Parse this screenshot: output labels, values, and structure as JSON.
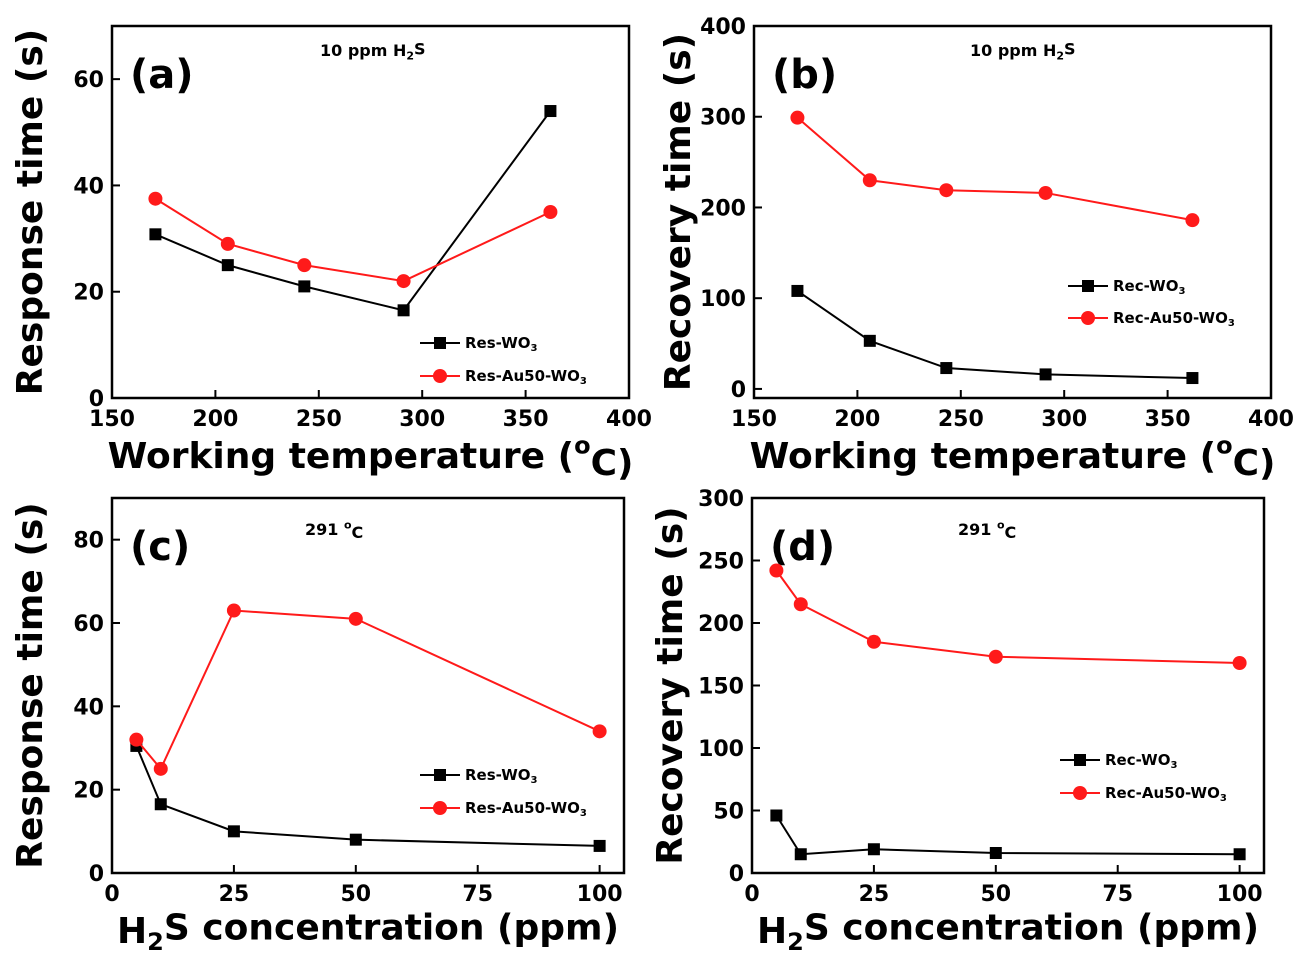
{
  "colors": {
    "wo3": "#000000",
    "au": "#ff1a1a"
  },
  "chart_data": [
    {
      "panel_label": "(a)",
      "type": "line",
      "annotation": {
        "main": "10 ppm H",
        "sub": "2",
        "post": "S"
      },
      "xlabel": {
        "main": "Working temperature (",
        "sup": "o",
        "post": "C)"
      },
      "ylabel": "Response time (s)",
      "xlim": [
        150,
        400
      ],
      "ylim": [
        0,
        70
      ],
      "xticks": [
        "150",
        "200",
        "250",
        "300",
        "350",
        "400"
      ],
      "yticks": [
        "0",
        "20",
        "40",
        "60"
      ],
      "legend_position": "bottom-right",
      "series": [
        {
          "name": {
            "main": "Res-WO",
            "sub": "3"
          },
          "color": "#000000",
          "marker": "square",
          "x": [
            171,
            206,
            243,
            291,
            362
          ],
          "y": [
            30.8,
            25,
            21,
            16.5,
            54
          ]
        },
        {
          "name": {
            "main": "Res-Au50-WO",
            "sub": "3"
          },
          "color": "#ff1a1a",
          "marker": "circle",
          "x": [
            171,
            206,
            243,
            291,
            362
          ],
          "y": [
            37.5,
            29,
            25,
            22,
            35
          ]
        }
      ]
    },
    {
      "panel_label": "(b)",
      "type": "line",
      "annotation": {
        "main": "10 ppm H",
        "sub": "2",
        "post": "S"
      },
      "xlabel": {
        "main": "Working temperature (",
        "sup": "o",
        "post": "C)"
      },
      "ylabel": "Recovery time (s)",
      "xlim": [
        150,
        400
      ],
      "ylim": [
        -10,
        400
      ],
      "xticks": [
        "150",
        "200",
        "250",
        "300",
        "350",
        "400"
      ],
      "yticks": [
        "0",
        "100",
        "200",
        "300",
        "400"
      ],
      "legend_position": "right",
      "series": [
        {
          "name": {
            "main": "Rec-WO",
            "sub": "3"
          },
          "color": "#000000",
          "marker": "square",
          "x": [
            171,
            206,
            243,
            291,
            362
          ],
          "y": [
            108,
            53,
            23,
            16,
            12
          ]
        },
        {
          "name": {
            "main": "Rec-Au50-WO",
            "sub": "3"
          },
          "color": "#ff1a1a",
          "marker": "circle",
          "x": [
            171,
            206,
            243,
            291,
            362
          ],
          "y": [
            299,
            230,
            219,
            216,
            186
          ]
        }
      ]
    },
    {
      "panel_label": "(c)",
      "type": "line",
      "annotation": {
        "main": "291 ",
        "sup": "o",
        "post": "C"
      },
      "xlabel": {
        "main": "H",
        "sub": "2",
        "post": "S concentration (ppm)"
      },
      "ylabel": "Response time (s)",
      "xlim": [
        0,
        105
      ],
      "ylim": [
        0,
        90
      ],
      "xticks": [
        "0",
        "25",
        "50",
        "75",
        "100"
      ],
      "yticks": [
        "0",
        "20",
        "40",
        "60",
        "80"
      ],
      "legend_position": "bottom-right",
      "series": [
        {
          "name": {
            "main": "Res-WO",
            "sub": "3"
          },
          "color": "#000000",
          "marker": "square",
          "x": [
            5,
            10,
            25,
            50,
            100
          ],
          "y": [
            30.5,
            16.5,
            10,
            8,
            6.5
          ]
        },
        {
          "name": {
            "main": "Res-Au50-WO",
            "sub": "3"
          },
          "color": "#ff1a1a",
          "marker": "circle",
          "x": [
            5,
            10,
            25,
            50,
            100
          ],
          "y": [
            32,
            25,
            63,
            61,
            34
          ]
        }
      ]
    },
    {
      "panel_label": "(d)",
      "type": "line",
      "annotation": {
        "main": "291 ",
        "sup": "o",
        "post": "C"
      },
      "xlabel": {
        "main": "H",
        "sub": "2",
        "post": "S concentration (ppm)"
      },
      "ylabel": "Recovery time (s)",
      "xlim": [
        0,
        105
      ],
      "ylim": [
        0,
        300
      ],
      "xticks": [
        "0",
        "25",
        "50",
        "75",
        "100"
      ],
      "yticks": [
        "0",
        "50",
        "100",
        "150",
        "200",
        "250",
        "300"
      ],
      "legend_position": "bottom-right",
      "series": [
        {
          "name": {
            "main": "Rec-WO",
            "sub": "3"
          },
          "color": "#000000",
          "marker": "square",
          "x": [
            5,
            10,
            25,
            50,
            100
          ],
          "y": [
            46,
            15,
            19,
            16,
            15
          ]
        },
        {
          "name": {
            "main": "Rec-Au50-WO",
            "sub": "3"
          },
          "color": "#ff1a1a",
          "marker": "circle",
          "x": [
            5,
            10,
            25,
            50,
            100
          ],
          "y": [
            242,
            215,
            185,
            173,
            168
          ]
        }
      ]
    }
  ]
}
